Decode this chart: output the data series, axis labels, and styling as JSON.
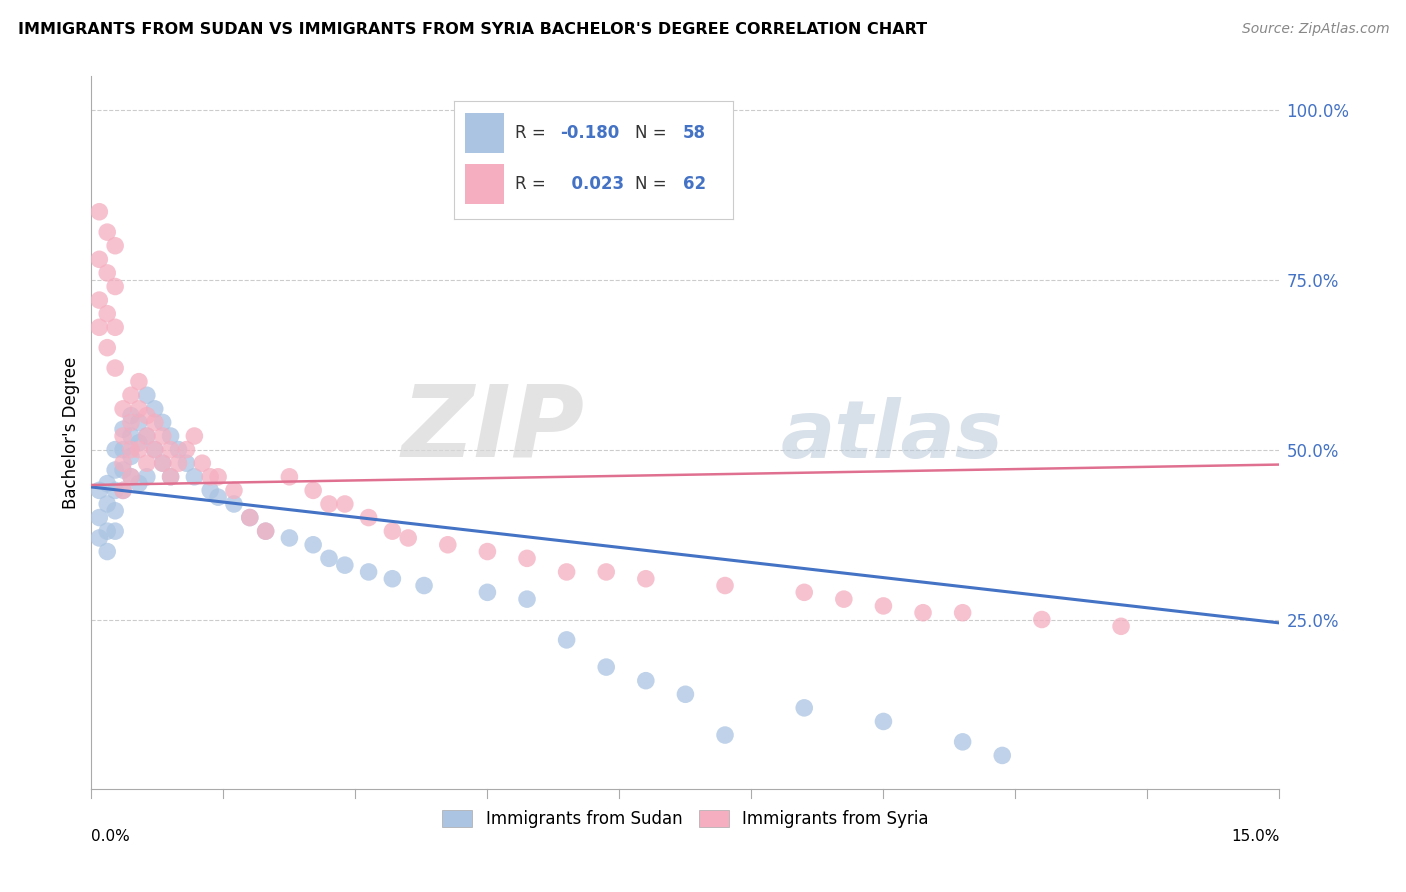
{
  "title": "IMMIGRANTS FROM SUDAN VS IMMIGRANTS FROM SYRIA BACHELOR'S DEGREE CORRELATION CHART",
  "source": "Source: ZipAtlas.com",
  "ylabel": "Bachelor's Degree",
  "xlim": [
    0.0,
    0.15
  ],
  "ylim": [
    0.0,
    1.05
  ],
  "watermark_zip": "ZIP",
  "watermark_atlas": "atlas",
  "legend_r_sudan": "-0.180",
  "legend_n_sudan": "58",
  "legend_r_syria": "0.023",
  "legend_n_syria": "62",
  "sudan_color": "#aac4e2",
  "syria_color": "#f5aec0",
  "sudan_line_color": "#4472c4",
  "syria_line_color": "#e07090",
  "grid_color": "#cccccc",
  "background_color": "#ffffff",
  "sudan_line_y0": 0.445,
  "sudan_line_y1": 0.245,
  "syria_line_y0": 0.448,
  "syria_line_y1": 0.478,
  "sudan_x": [
    0.001,
    0.001,
    0.001,
    0.002,
    0.002,
    0.002,
    0.002,
    0.003,
    0.003,
    0.003,
    0.003,
    0.003,
    0.004,
    0.004,
    0.004,
    0.004,
    0.005,
    0.005,
    0.005,
    0.005,
    0.006,
    0.006,
    0.006,
    0.007,
    0.007,
    0.007,
    0.008,
    0.008,
    0.009,
    0.009,
    0.01,
    0.01,
    0.011,
    0.012,
    0.013,
    0.015,
    0.016,
    0.018,
    0.02,
    0.022,
    0.025,
    0.028,
    0.03,
    0.032,
    0.035,
    0.038,
    0.042,
    0.05,
    0.055,
    0.06,
    0.065,
    0.07,
    0.075,
    0.08,
    0.09,
    0.1,
    0.11,
    0.115
  ],
  "sudan_y": [
    0.44,
    0.4,
    0.37,
    0.45,
    0.42,
    0.38,
    0.35,
    0.5,
    0.47,
    0.44,
    0.41,
    0.38,
    0.53,
    0.5,
    0.47,
    0.44,
    0.55,
    0.52,
    0.49,
    0.46,
    0.54,
    0.51,
    0.45,
    0.58,
    0.52,
    0.46,
    0.56,
    0.5,
    0.54,
    0.48,
    0.52,
    0.46,
    0.5,
    0.48,
    0.46,
    0.44,
    0.43,
    0.42,
    0.4,
    0.38,
    0.37,
    0.36,
    0.34,
    0.33,
    0.32,
    0.31,
    0.3,
    0.29,
    0.28,
    0.22,
    0.18,
    0.16,
    0.14,
    0.08,
    0.12,
    0.1,
    0.07,
    0.05
  ],
  "syria_x": [
    0.001,
    0.001,
    0.001,
    0.001,
    0.002,
    0.002,
    0.002,
    0.002,
    0.003,
    0.003,
    0.003,
    0.003,
    0.004,
    0.004,
    0.004,
    0.004,
    0.005,
    0.005,
    0.005,
    0.005,
    0.006,
    0.006,
    0.006,
    0.007,
    0.007,
    0.007,
    0.008,
    0.008,
    0.009,
    0.009,
    0.01,
    0.01,
    0.011,
    0.012,
    0.013,
    0.014,
    0.015,
    0.016,
    0.018,
    0.02,
    0.022,
    0.025,
    0.028,
    0.03,
    0.032,
    0.035,
    0.038,
    0.04,
    0.045,
    0.05,
    0.055,
    0.06,
    0.065,
    0.07,
    0.08,
    0.09,
    0.095,
    0.1,
    0.105,
    0.11,
    0.12,
    0.13
  ],
  "syria_y": [
    0.85,
    0.78,
    0.72,
    0.68,
    0.82,
    0.76,
    0.7,
    0.65,
    0.8,
    0.74,
    0.68,
    0.62,
    0.56,
    0.52,
    0.48,
    0.44,
    0.58,
    0.54,
    0.5,
    0.46,
    0.6,
    0.56,
    0.5,
    0.55,
    0.52,
    0.48,
    0.54,
    0.5,
    0.52,
    0.48,
    0.5,
    0.46,
    0.48,
    0.5,
    0.52,
    0.48,
    0.46,
    0.46,
    0.44,
    0.4,
    0.38,
    0.46,
    0.44,
    0.42,
    0.42,
    0.4,
    0.38,
    0.37,
    0.36,
    0.35,
    0.34,
    0.32,
    0.32,
    0.31,
    0.3,
    0.29,
    0.28,
    0.27,
    0.26,
    0.26,
    0.25,
    0.24
  ]
}
